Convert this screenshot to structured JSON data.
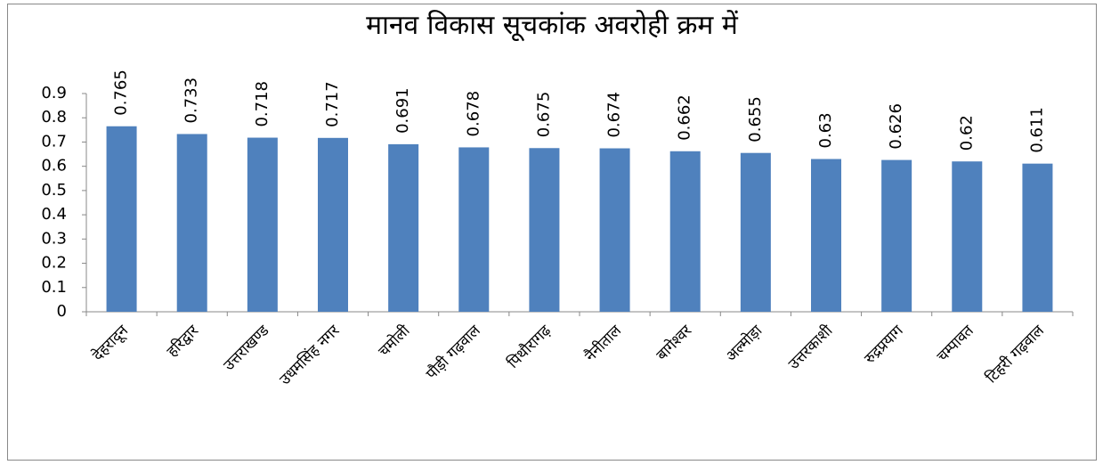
{
  "chart_data": {
    "type": "bar",
    "title": "मानव विकास सूचकांक अवरोही क्रम में",
    "categories": [
      "देहरादून",
      "हरिद्वार",
      "उत्तराखण्ड",
      "उधमसिंह नगर",
      "चमोली",
      "पौड़ी गढ़वाल",
      "पिथौरागढ़",
      "नैनीताल",
      "बागेश्वर",
      "अल्मोड़ा",
      "उत्तरकाशी",
      "रुद्रप्रयाग",
      "चम्पावत",
      "टिहरी गढ़वाल"
    ],
    "values": [
      0.765,
      0.733,
      0.718,
      0.717,
      0.691,
      0.678,
      0.675,
      0.674,
      0.662,
      0.655,
      0.63,
      0.626,
      0.62,
      0.611
    ],
    "color": "#4f81bd",
    "ylim": [
      0,
      0.9
    ],
    "yticks": [
      0,
      0.1,
      0.2,
      0.3,
      0.4,
      0.5,
      0.6,
      0.7,
      0.8,
      0.9
    ],
    "grid": false
  }
}
